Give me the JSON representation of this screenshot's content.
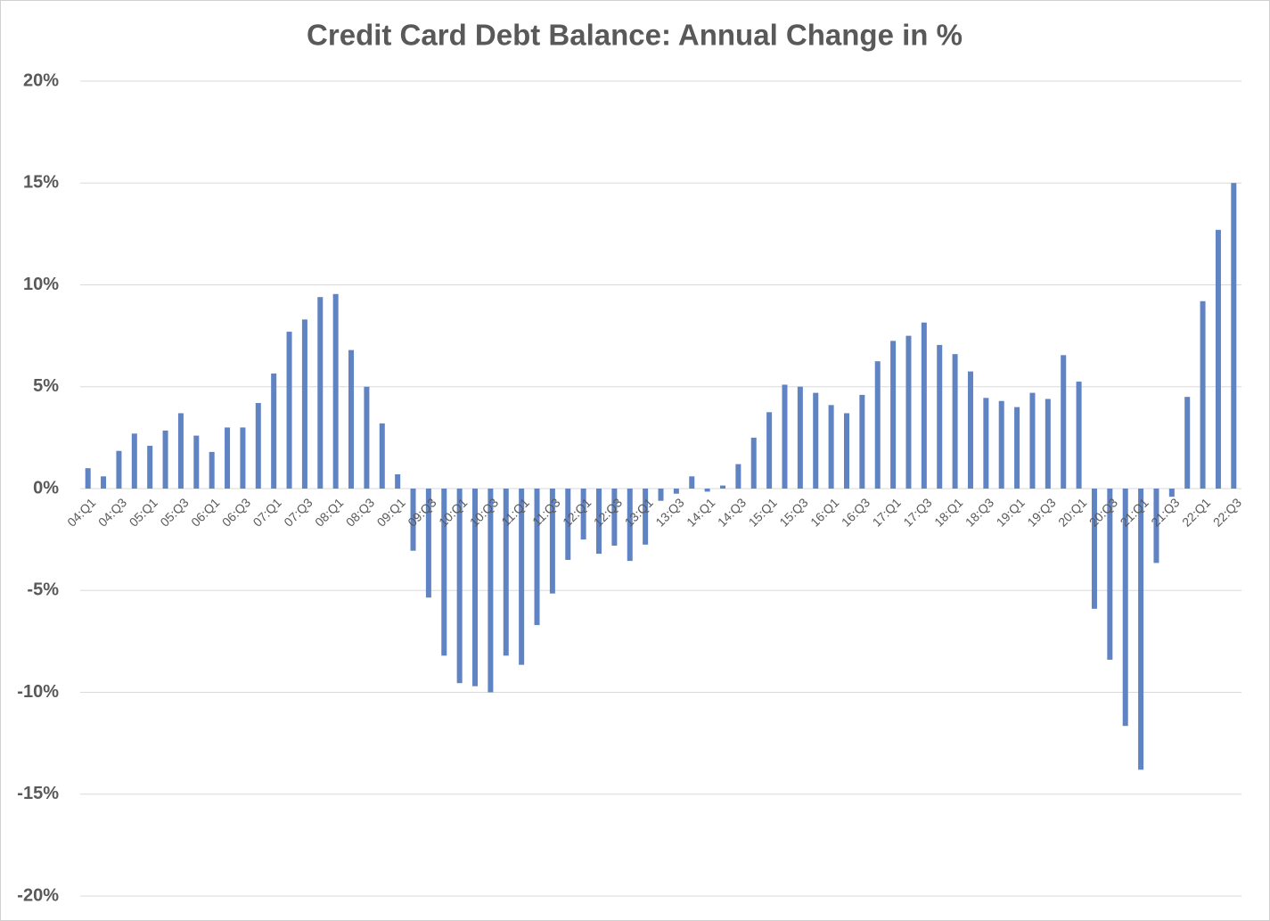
{
  "chart_data": {
    "type": "bar",
    "title": "Credit Card Debt Balance: Annual Change in %",
    "categories": [
      "04:Q1",
      null,
      "04:Q3",
      null,
      "05:Q1",
      null,
      "05:Q3",
      null,
      "06:Q1",
      null,
      "06:Q3",
      null,
      "07:Q1",
      null,
      "07:Q3",
      null,
      "08:Q1",
      null,
      "08:Q3",
      null,
      "09:Q1",
      null,
      "09:Q3",
      null,
      "10:Q1",
      null,
      "10:Q3",
      null,
      "11:Q1",
      null,
      "11:Q3",
      null,
      "12:Q1",
      null,
      "12:Q3",
      null,
      "13:Q1",
      null,
      "13:Q3",
      null,
      "14:Q1",
      null,
      "14:Q3",
      null,
      "15:Q1",
      null,
      "15:Q3",
      null,
      "16:Q1",
      null,
      "16:Q3",
      null,
      "17:Q1",
      null,
      "17:Q3",
      null,
      "18:Q1",
      null,
      "18:Q3",
      null,
      "19:Q1",
      null,
      "19:Q3",
      null,
      "20:Q1",
      null,
      "20:Q3",
      null,
      "21:Q1",
      null,
      "21:Q3",
      null,
      "22:Q1",
      null,
      "22:Q3"
    ],
    "values": [
      1.0,
      0.6,
      1.85,
      2.7,
      2.1,
      2.85,
      3.7,
      2.6,
      1.8,
      3.0,
      3.0,
      4.2,
      5.65,
      7.7,
      8.3,
      9.4,
      9.55,
      6.8,
      5.0,
      3.2,
      0.7,
      -3.05,
      -5.35,
      -8.2,
      -9.55,
      -9.7,
      -10.0,
      -8.2,
      -8.65,
      -6.7,
      -5.15,
      -3.5,
      -2.5,
      -3.2,
      -2.8,
      -3.55,
      -2.75,
      -0.6,
      -0.25,
      0.6,
      -0.15,
      0.15,
      1.2,
      2.5,
      3.75,
      5.1,
      5.0,
      4.7,
      4.1,
      3.7,
      4.6,
      6.25,
      7.25,
      7.5,
      8.15,
      7.05,
      6.6,
      5.75,
      4.45,
      4.3,
      4.0,
      4.7,
      4.4,
      6.55,
      5.25,
      -5.9,
      -8.4,
      -11.65,
      -13.8,
      -3.65,
      -0.4,
      4.5,
      9.2,
      12.7,
      15.0
    ],
    "color": "#6083c4",
    "ylim": [
      -20,
      20
    ],
    "yticks": [
      {
        "value": -20,
        "label": "-20%"
      },
      {
        "value": -15,
        "label": "-15%"
      },
      {
        "value": -10,
        "label": "-10%"
      },
      {
        "value": -5,
        "label": "-5%"
      },
      {
        "value": 0,
        "label": "0%"
      },
      {
        "value": 5,
        "label": "5%"
      },
      {
        "value": 10,
        "label": "10%"
      },
      {
        "value": 15,
        "label": "15%"
      },
      {
        "value": 20,
        "label": "20%"
      }
    ],
    "grid": true
  }
}
